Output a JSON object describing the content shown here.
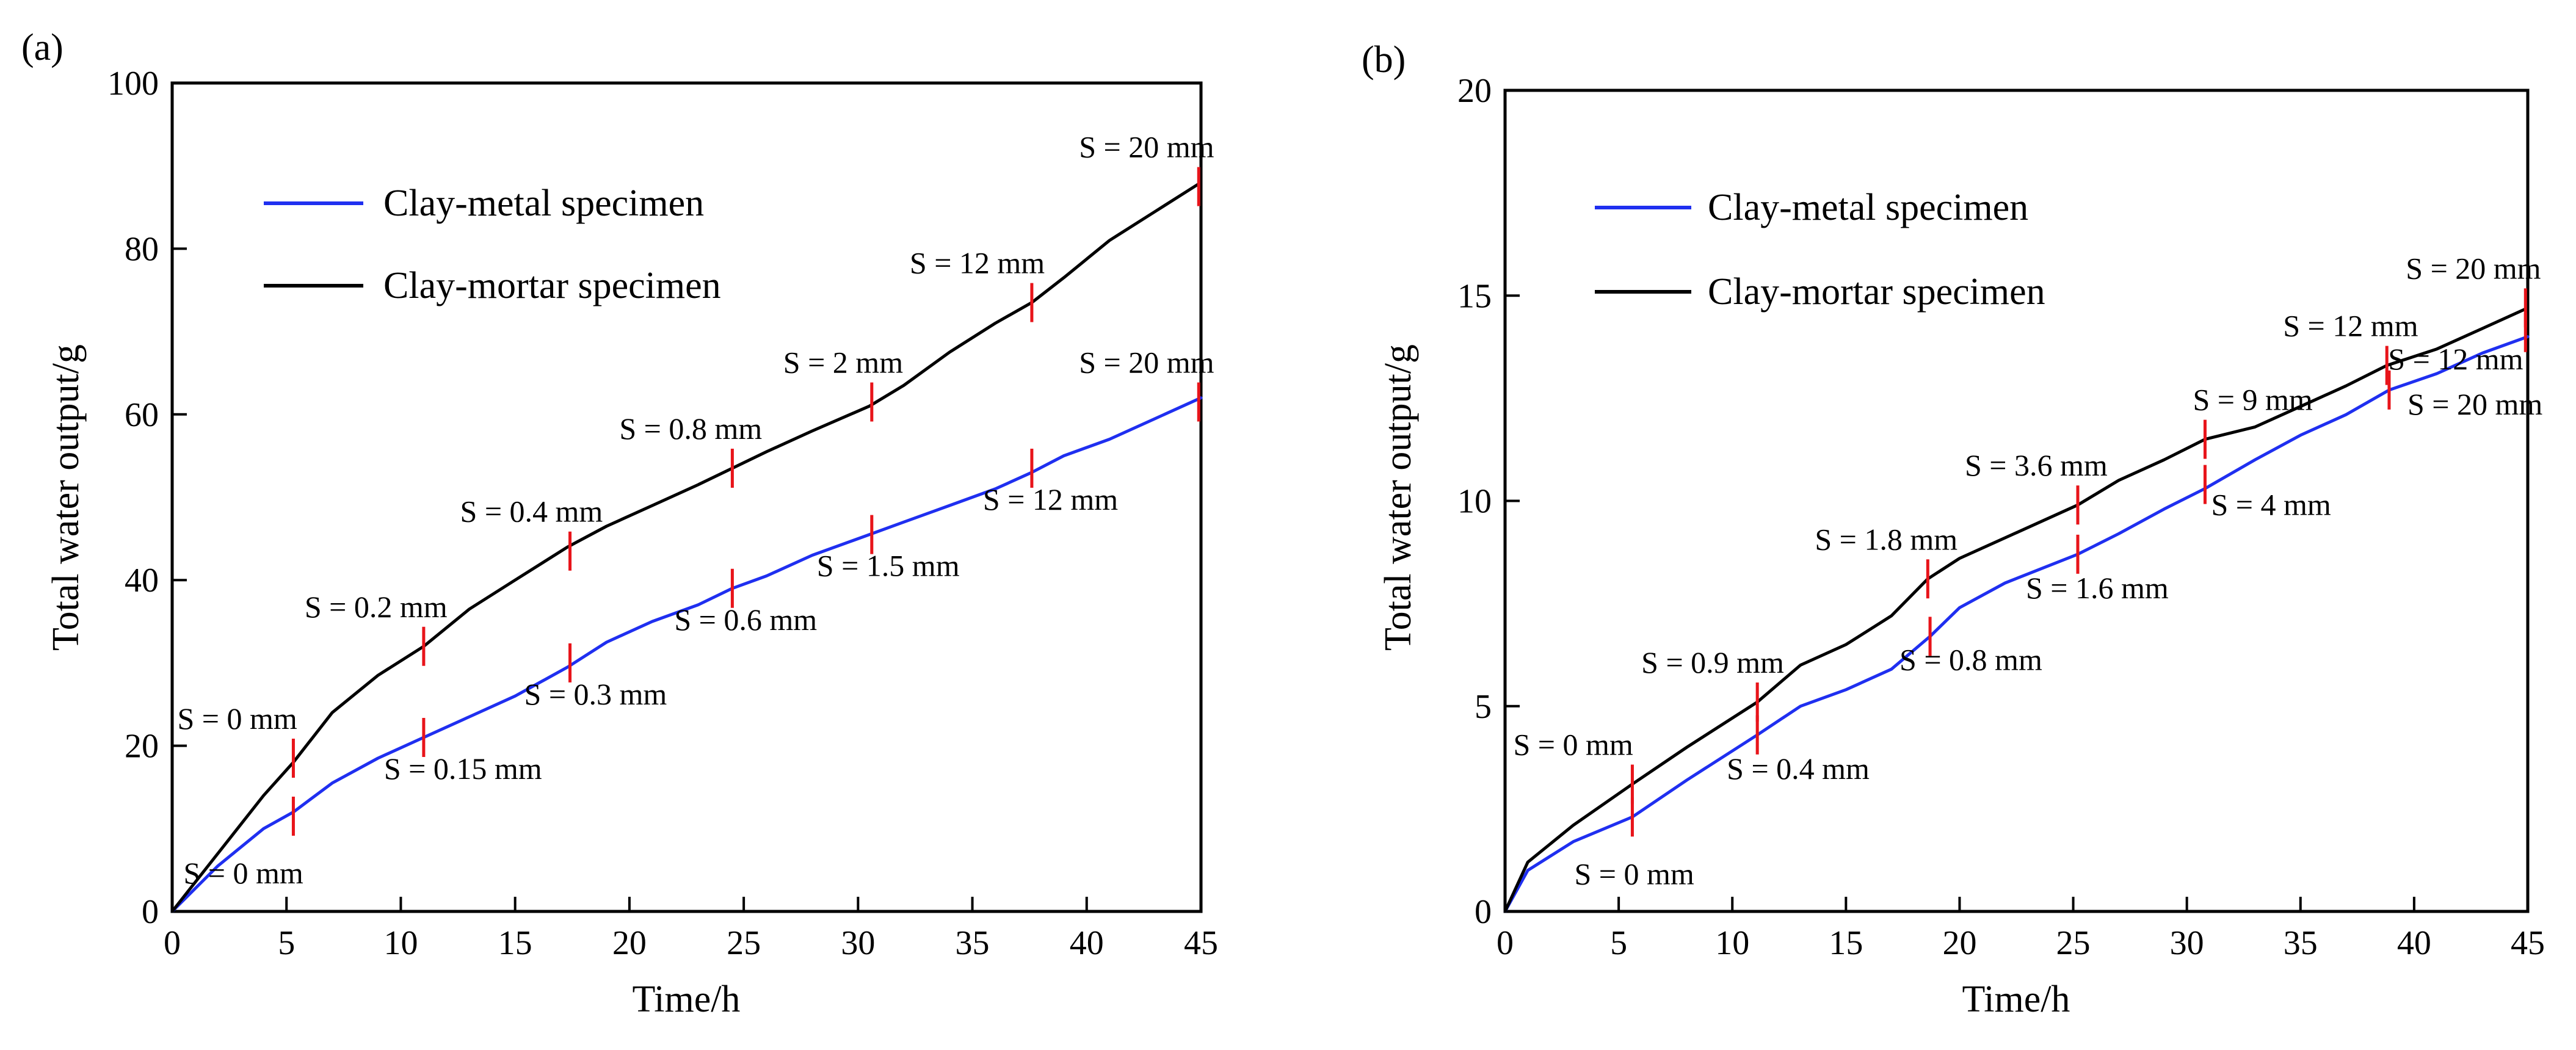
{
  "chart_data": [
    {
      "panel": "(a)",
      "type": "line",
      "xlabel": "Time/h",
      "ylabel": "Total water output/g",
      "xlim": [
        0,
        45
      ],
      "ylim": [
        0,
        100
      ],
      "xticks": [
        0,
        5,
        10,
        15,
        20,
        25,
        30,
        35,
        40,
        45
      ],
      "yticks": [
        0,
        20,
        40,
        60,
        80,
        100
      ],
      "legend_position": "top-left",
      "series": [
        {
          "name": "Clay-metal specimen",
          "color": "#1f2ff0",
          "x": [
            0,
            2,
            4,
            5.3,
            7,
            9,
            11,
            13,
            15,
            17.3,
            19,
            21,
            23,
            24.5,
            26,
            28,
            30.5,
            32,
            34,
            36,
            37.6,
            39,
            41,
            43,
            45
          ],
          "y": [
            0,
            5.5,
            10,
            12,
            15.5,
            18.5,
            21,
            23.5,
            26,
            29.5,
            32.5,
            35,
            37,
            39,
            40.5,
            43,
            45.5,
            47,
            49,
            51,
            53,
            55,
            57,
            59.5,
            62
          ]
        },
        {
          "name": "Clay-mortar specimen",
          "color": "#000000",
          "x": [
            0,
            2,
            4,
            5.3,
            7,
            9,
            11,
            13,
            15,
            17.3,
            19,
            21,
            23,
            24.5,
            26,
            28,
            30.5,
            32,
            34,
            36,
            37.6,
            39,
            41,
            43,
            45
          ],
          "y": [
            0,
            7,
            14,
            18,
            24,
            28.5,
            32,
            36.5,
            40,
            44,
            46.5,
            49,
            51.5,
            53.5,
            55.5,
            58,
            61,
            63.5,
            67.5,
            71,
            73.5,
            76.5,
            81,
            84.5,
            88
          ]
        }
      ],
      "markers": [
        {
          "x": 5.3,
          "y": 11.5,
          "label": "S = 0 mm"
        },
        {
          "x": 5.3,
          "y": 18.5,
          "label": "S = 0 mm"
        },
        {
          "x": 11,
          "y": 21,
          "label": "S = 0.15 mm"
        },
        {
          "x": 11,
          "y": 32,
          "label": "S = 0.2 mm"
        },
        {
          "x": 17.4,
          "y": 30,
          "label": "S = 0.3 mm"
        },
        {
          "x": 17.4,
          "y": 43.5,
          "label": "S = 0.4 mm"
        },
        {
          "x": 24.5,
          "y": 39,
          "label": "S = 0.6 mm"
        },
        {
          "x": 24.5,
          "y": 53.5,
          "label": "S = 0.8 mm"
        },
        {
          "x": 30.6,
          "y": 45.5,
          "label": "S = 1.5 mm"
        },
        {
          "x": 30.6,
          "y": 61.5,
          "label": "S = 2 mm"
        },
        {
          "x": 37.6,
          "y": 53.5,
          "label": "S = 12 mm"
        },
        {
          "x": 37.6,
          "y": 73.5,
          "label": "S = 12 mm"
        },
        {
          "x": 44.9,
          "y": 61.5,
          "label": "S = 20 mm"
        },
        {
          "x": 44.9,
          "y": 87.5,
          "label": "S = 20 mm"
        }
      ]
    },
    {
      "panel": "(b)",
      "type": "line",
      "xlabel": "Time/h",
      "ylabel": "Total water output/g",
      "xlim": [
        0,
        45
      ],
      "ylim": [
        0,
        20
      ],
      "xticks": [
        0,
        5,
        10,
        15,
        20,
        25,
        30,
        35,
        40,
        45
      ],
      "yticks": [
        0,
        5,
        10,
        15,
        20
      ],
      "legend_position": "top-left",
      "series": [
        {
          "name": "Clay-metal specimen",
          "color": "#1f2ff0",
          "x": [
            0,
            1,
            3,
            5.6,
            8,
            11.1,
            13,
            15,
            17,
            18.7,
            20,
            22,
            25.2,
            27,
            29,
            30.8,
            33,
            35,
            37,
            38.9,
            41,
            43,
            45
          ],
          "y": [
            0,
            1,
            1.7,
            2.3,
            3.2,
            4.3,
            5,
            5.4,
            5.9,
            6.7,
            7.4,
            8,
            8.7,
            9.2,
            9.8,
            10.3,
            11,
            11.6,
            12.1,
            12.7,
            13.1,
            13.6,
            14
          ]
        },
        {
          "name": "Clay-mortar specimen",
          "color": "#000000",
          "x": [
            0,
            1,
            3,
            5.6,
            8,
            11.1,
            13,
            15,
            17,
            18.6,
            20,
            22,
            25.2,
            27,
            29,
            30.8,
            33,
            35,
            37,
            38.8,
            41,
            43,
            45
          ],
          "y": [
            0,
            1.2,
            2.1,
            3.1,
            4,
            5.1,
            6,
            6.5,
            7.2,
            8.1,
            8.6,
            9.1,
            9.9,
            10.5,
            11,
            11.5,
            11.8,
            12.3,
            12.8,
            13.3,
            13.7,
            14.2,
            14.7
          ]
        }
      ],
      "markers": [
        {
          "x": 5.6,
          "y": 2.3,
          "label": "S = 0 mm"
        },
        {
          "x": 5.6,
          "y": 3.1,
          "label": "S = 0 mm"
        },
        {
          "x": 11.1,
          "y": 4.3,
          "label": "S = 0.4 mm"
        },
        {
          "x": 11.1,
          "y": 5.1,
          "label": "S = 0.9 mm"
        },
        {
          "x": 18.7,
          "y": 6.7,
          "label": "S = 0.8 mm"
        },
        {
          "x": 18.6,
          "y": 8.1,
          "label": "S = 1.8 mm"
        },
        {
          "x": 25.2,
          "y": 8.7,
          "label": "S = 1.6 mm"
        },
        {
          "x": 25.2,
          "y": 9.9,
          "label": "S = 3.6 mm"
        },
        {
          "x": 30.8,
          "y": 10.4,
          "label": "S = 4 mm"
        },
        {
          "x": 30.8,
          "y": 11.5,
          "label": "S = 9 mm"
        },
        {
          "x": 38.9,
          "y": 12.7,
          "label": "S = 20 mm"
        },
        {
          "x": 38.8,
          "y": 13.3,
          "label": "S = 12 mm"
        },
        {
          "x": 44.9,
          "y": 14.1,
          "label": "S = 12 mm"
        },
        {
          "x": 44.9,
          "y": 14.7,
          "label": "S = 20 mm"
        }
      ]
    }
  ]
}
